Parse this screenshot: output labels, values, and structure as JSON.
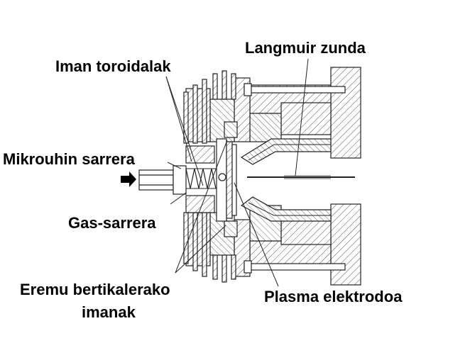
{
  "labels": {
    "langmuir_probe": "Langmuir zunda",
    "toroidal_magnets": "Iman toroidalak",
    "microwave_inlet": "Mikrouhin sarrera",
    "gas_inlet": "Gas-sarrera",
    "vertical_field_magnets_line1": "Eremu bertikalerako",
    "vertical_field_magnets_line2": "imanak",
    "plasma_electrode": "Plasma elektrodoa"
  }
}
